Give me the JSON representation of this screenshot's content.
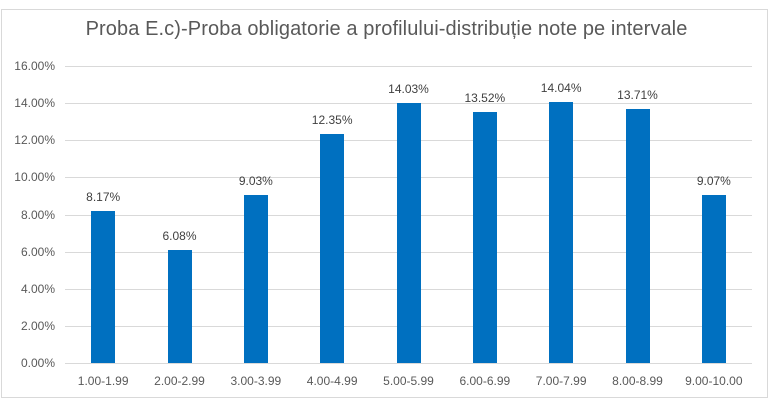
{
  "chart_data": {
    "type": "bar",
    "title": "Proba E.c)-Proba obligatorie a profilului-distribuție note pe intervale",
    "xlabel": "",
    "ylabel": "",
    "categories": [
      "1.00-1.99",
      "2.00-2.99",
      "3.00-3.99",
      "4.00-4.99",
      "5.00-5.99",
      "6.00-6.99",
      "7.00-7.99",
      "8.00-8.99",
      "9.00-10.00"
    ],
    "values": [
      8.17,
      6.08,
      9.03,
      12.35,
      14.03,
      13.52,
      14.04,
      13.71,
      9.07
    ],
    "value_labels": [
      "8.17%",
      "6.08%",
      "9.03%",
      "12.35%",
      "14.03%",
      "13.52%",
      "14.04%",
      "13.71%",
      "9.07%"
    ],
    "ylim": [
      0,
      16
    ],
    "yticks": [
      "0.00%",
      "2.00%",
      "4.00%",
      "6.00%",
      "8.00%",
      "10.00%",
      "12.00%",
      "14.00%",
      "16.00%"
    ],
    "grid": true,
    "legend": null,
    "bar_color": "#0070c0"
  }
}
